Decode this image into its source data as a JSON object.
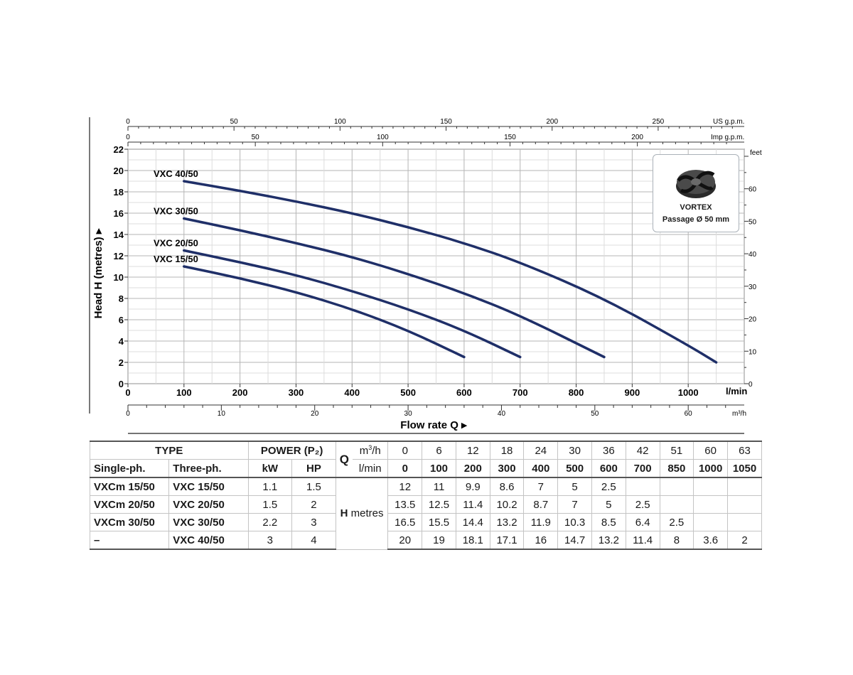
{
  "chart_data": {
    "type": "line",
    "xlabel": "Flow rate Q",
    "xunit": "l/min",
    "ylabel": "Head H (metres)",
    "xlim": [
      0,
      1100
    ],
    "ylim": [
      0,
      22
    ],
    "x_ticks": [
      0,
      100,
      200,
      300,
      400,
      500,
      600,
      700,
      800,
      900,
      1000
    ],
    "y_ticks": [
      0,
      2,
      4,
      6,
      8,
      10,
      12,
      14,
      16,
      18,
      20,
      22
    ],
    "secondary_axes": {
      "right": {
        "unit": "feet",
        "ticks": [
          0,
          10,
          20,
          30,
          40,
          50,
          60
        ]
      },
      "top_us": {
        "unit": "US g.p.m.",
        "ticks": [
          0,
          50,
          100,
          150,
          200,
          250
        ]
      },
      "top_imp": {
        "unit": "Imp g.p.m.",
        "ticks": [
          0,
          50,
          100,
          150,
          200
        ]
      },
      "bottom_m3h": {
        "unit": "m³/h",
        "ticks": [
          0,
          10,
          20,
          30,
          40,
          50,
          60
        ]
      }
    },
    "grid": true,
    "series": [
      {
        "name": "VXC 40/50",
        "x": [
          100,
          200,
          300,
          400,
          500,
          600,
          700,
          850,
          1000,
          1050
        ],
        "y": [
          19,
          18.1,
          17.1,
          16,
          14.7,
          13.2,
          11.4,
          8,
          3.6,
          2
        ]
      },
      {
        "name": "VXC 30/50",
        "x": [
          100,
          200,
          300,
          400,
          500,
          600,
          700,
          850
        ],
        "y": [
          15.5,
          14.4,
          13.2,
          11.9,
          10.3,
          8.5,
          6.4,
          2.5
        ]
      },
      {
        "name": "VXC 20/50",
        "x": [
          100,
          200,
          300,
          400,
          500,
          600,
          700
        ],
        "y": [
          12.5,
          11.4,
          10.2,
          8.7,
          7,
          5,
          2.5
        ]
      },
      {
        "name": "VXC 15/50",
        "x": [
          100,
          200,
          300,
          400,
          500,
          600
        ],
        "y": [
          11,
          9.9,
          8.6,
          7,
          5,
          2.5
        ]
      }
    ]
  },
  "badge": {
    "title": "VORTEX",
    "subtitle": "Passage Ø 50 mm"
  },
  "table": {
    "h_type": "TYPE",
    "h_power": "POWER (P₂)",
    "h_single": "Single-ph.",
    "h_three": "Three-ph.",
    "h_kw": "kW",
    "h_hp": "HP",
    "q": "Q",
    "unit_m3h_base": "m",
    "unit_m3h_sup": "3",
    "unit_m3h_tail": "/h",
    "unit_lmin": "l/min",
    "h_metres_h": "H",
    "h_metres": "metres",
    "m3h": [
      "0",
      "6",
      "12",
      "18",
      "24",
      "30",
      "36",
      "42",
      "51",
      "60",
      "63"
    ],
    "lmin": [
      "0",
      "100",
      "200",
      "300",
      "400",
      "500",
      "600",
      "700",
      "850",
      "1000",
      "1050"
    ],
    "rows": [
      {
        "single": "VXCm 15/50",
        "three": "VXC 15/50",
        "kw": "1.1",
        "hp": "1.5",
        "h": [
          "12",
          "11",
          "9.9",
          "8.6",
          "7",
          "5",
          "2.5",
          "",
          "",
          "",
          ""
        ]
      },
      {
        "single": "VXCm 20/50",
        "three": "VXC 20/50",
        "kw": "1.5",
        "hp": "2",
        "h": [
          "13.5",
          "12.5",
          "11.4",
          "10.2",
          "8.7",
          "7",
          "5",
          "2.5",
          "",
          "",
          ""
        ]
      },
      {
        "single": "VXCm 30/50",
        "three": "VXC 30/50",
        "kw": "2.2",
        "hp": "3",
        "h": [
          "16.5",
          "15.5",
          "14.4",
          "13.2",
          "11.9",
          "10.3",
          "8.5",
          "6.4",
          "2.5",
          "",
          ""
        ]
      },
      {
        "single": "–",
        "three": "VXC 40/50",
        "kw": "3",
        "hp": "4",
        "h": [
          "20",
          "19",
          "18.1",
          "17.1",
          "16",
          "14.7",
          "13.2",
          "11.4",
          "8",
          "3.6",
          "2"
        ]
      }
    ]
  }
}
